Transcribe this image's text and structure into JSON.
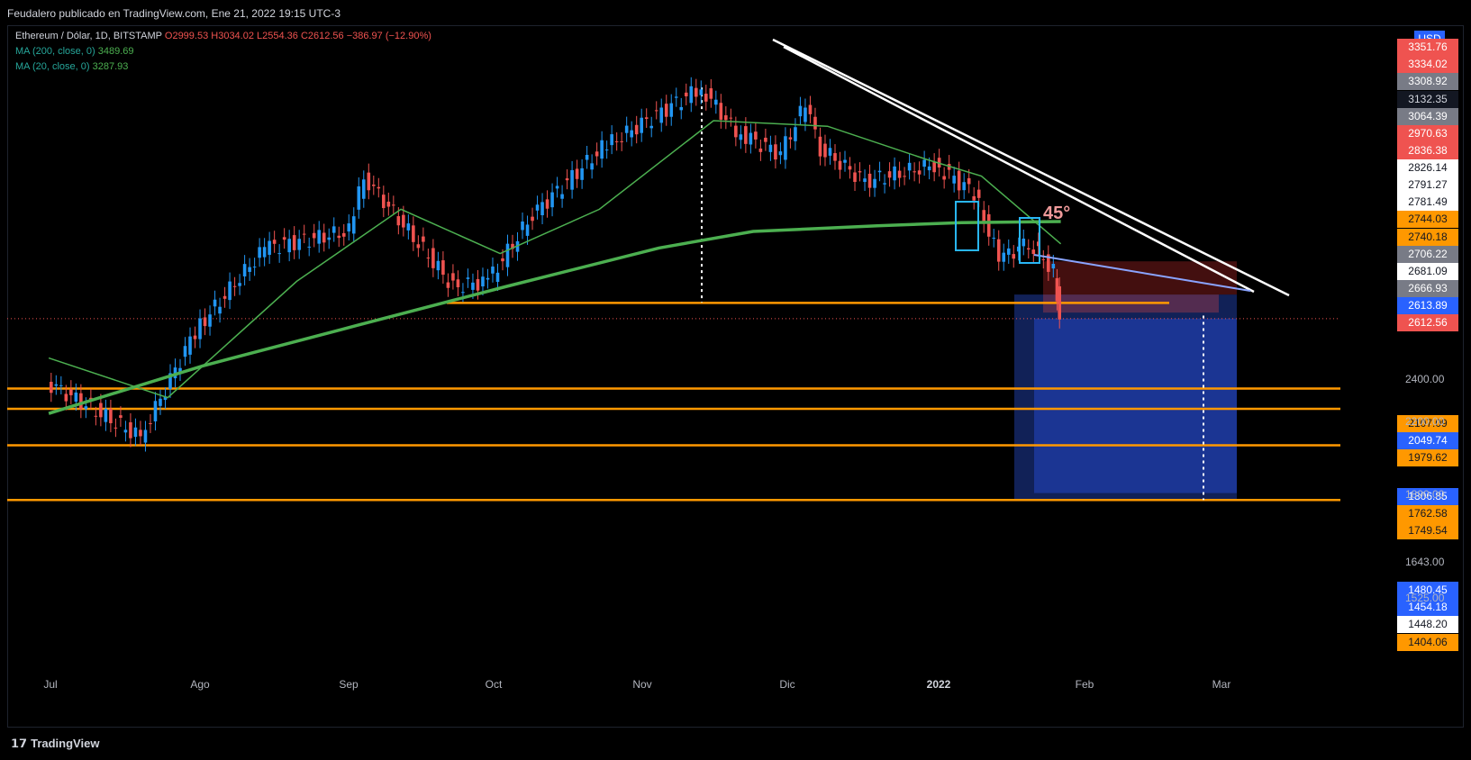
{
  "header": {
    "publisher": "Feudalero publicado en TradingView.com, Ene 21, 2022 19:15 UTC-3"
  },
  "legend": {
    "symbol": "Ethereum / Dólar, 1D, BITSTAMP",
    "ohlc": "O2999.53 H3034.02 L2554.36 C2612.56 −386.97 (−12.90%)",
    "ma200_label": "MA (200, close, 0)",
    "ma200_value": "3489.69",
    "ma20_label": "MA (20, close, 0)",
    "ma20_value": "3287.93"
  },
  "currency": "USD",
  "annotation": "45°",
  "brand": "TradingView",
  "colors": {
    "up": "#2196f3",
    "down": "#ef5350",
    "ma200": "#4caf50",
    "ma20": "#4caf50",
    "level": "#ff9800",
    "trend": "#ffffff",
    "target_zone": "#1e3fa8",
    "stop_zone": "#6b1616"
  },
  "chart_data": {
    "type": "line",
    "title": "Ethereum / Dólar, 1D, BITSTAMP",
    "x_ticks": [
      "Jul",
      "Ago",
      "Sep",
      "Oct",
      "Nov",
      "Dic",
      "2022",
      "Feb",
      "Mar"
    ],
    "price_path": {
      "dates": [
        "2021-07-01",
        "2021-07-20",
        "2021-07-31",
        "2021-08-14",
        "2021-08-31",
        "2021-09-03",
        "2021-09-21",
        "2021-09-28",
        "2021-10-07",
        "2021-10-21",
        "2021-11-10",
        "2021-11-17",
        "2021-11-26",
        "2021-12-01",
        "2021-12-04",
        "2021-12-13",
        "2021-12-27",
        "2022-01-04",
        "2022-01-09",
        "2022-01-15",
        "2022-01-20",
        "2022-01-21"
      ],
      "close": [
        2150,
        1800,
        2500,
        3250,
        3400,
        3900,
        2900,
        2950,
        3550,
        4150,
        4700,
        4300,
        4100,
        4550,
        4150,
        3850,
        4000,
        3750,
        3150,
        3300,
        3050,
        2612.56
      ]
    },
    "ma200": {
      "dates": [
        "2021-07-01",
        "2021-08-01",
        "2021-09-01",
        "2021-10-01",
        "2021-11-01",
        "2021-11-20",
        "2021-12-15",
        "2022-01-01",
        "2022-01-21"
      ],
      "values": [
        1950,
        2250,
        2550,
        2900,
        3250,
        3400,
        3450,
        3480,
        3489.69
      ]
    },
    "ma20": {
      "dates": [
        "2021-07-01",
        "2021-07-25",
        "2021-08-20",
        "2021-09-10",
        "2021-09-30",
        "2021-10-20",
        "2021-11-12",
        "2021-12-05",
        "2021-12-25",
        "2022-01-05",
        "2022-01-21"
      ],
      "values": [
        2300,
        2050,
        2950,
        3600,
        3200,
        3600,
        4400,
        4350,
        4050,
        3900,
        3287.93
      ]
    },
    "horizontal_levels": [
      2107.09,
      1979.62,
      1749.54,
      1404.06
    ],
    "last_price": 2612.56,
    "price_axis_tags": [
      {
        "value": "3351.76",
        "bg": "#ef5350",
        "fg": "#ffffff"
      },
      {
        "value": "3334.02",
        "bg": "#ef5350",
        "fg": "#ffffff"
      },
      {
        "value": "3308.92",
        "bg": "#787b86",
        "fg": "#ffffff"
      },
      {
        "value": "3132.35",
        "bg": "#131722",
        "fg": "#d1d4dc"
      },
      {
        "value": "3064.39",
        "bg": "#787b86",
        "fg": "#ffffff"
      },
      {
        "value": "2970.63",
        "bg": "#ef5350",
        "fg": "#ffffff"
      },
      {
        "value": "2836.38",
        "bg": "#ef5350",
        "fg": "#ffffff"
      },
      {
        "value": "2826.14",
        "bg": "#ffffff",
        "fg": "#131722"
      },
      {
        "value": "2791.27",
        "bg": "#ffffff",
        "fg": "#131722"
      },
      {
        "value": "2781.49",
        "bg": "#ffffff",
        "fg": "#131722"
      },
      {
        "value": "2744.03",
        "bg": "#ff9800",
        "fg": "#131722"
      },
      {
        "value": "2740.18",
        "bg": "#ff9800",
        "fg": "#131722"
      },
      {
        "value": "2706.22",
        "bg": "#787b86",
        "fg": "#ffffff"
      },
      {
        "value": "2681.09",
        "bg": "#ffffff",
        "fg": "#131722"
      },
      {
        "value": "2666.93",
        "bg": "#787b86",
        "fg": "#ffffff"
      },
      {
        "value": "2613.89",
        "bg": "#2962ff",
        "fg": "#ffffff"
      },
      {
        "value": "2612.56",
        "bg": "#ef5350",
        "fg": "#ffffff"
      },
      {
        "value": "2107.09",
        "bg": "#ff9800",
        "fg": "#131722"
      },
      {
        "value": "2049.74",
        "bg": "#2962ff",
        "fg": "#ffffff"
      },
      {
        "value": "1979.62",
        "bg": "#ff9800",
        "fg": "#131722"
      },
      {
        "value": "1806.85",
        "bg": "#2962ff",
        "fg": "#ffffff"
      },
      {
        "value": "1762.58",
        "bg": "#ff9800",
        "fg": "#131722"
      },
      {
        "value": "1749.54",
        "bg": "#ff9800",
        "fg": "#131722"
      },
      {
        "value": "1480.45",
        "bg": "#2962ff",
        "fg": "#ffffff"
      },
      {
        "value": "1454.18",
        "bg": "#2962ff",
        "fg": "#ffffff"
      },
      {
        "value": "1448.20",
        "bg": "#ffffff",
        "fg": "#131722"
      },
      {
        "value": "1404.06",
        "bg": "#ff9800",
        "fg": "#131722"
      }
    ],
    "axis_ticks": [
      "2400.00",
      "2200.00",
      "1890.00",
      "1643.00",
      "1525.00"
    ]
  }
}
